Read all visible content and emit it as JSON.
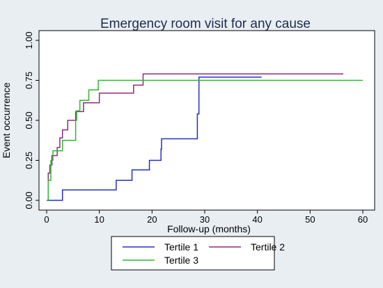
{
  "chart_data": {
    "type": "line",
    "title": "Emergency room visit for any cause",
    "xlabel": "Follow-up (months)",
    "ylabel": "Event occurrence",
    "xlim": [
      0,
      60
    ],
    "ylim": [
      0,
      1
    ],
    "xticks": [
      "0",
      "10",
      "20",
      "30",
      "40",
      "50",
      "60"
    ],
    "yticks": [
      "0.00",
      "0.25",
      "0.50",
      "0.75",
      "1.00"
    ],
    "step": true,
    "grid": false,
    "legend_position": "bottom",
    "series": [
      {
        "name": "Tertile 1",
        "color": "#2430c8",
        "x": [
          0,
          3,
          13.2,
          16.2,
          19.5,
          21.7,
          21.8,
          28.6,
          28.9,
          40.8
        ],
        "y": [
          0,
          0.065,
          0.125,
          0.19,
          0.25,
          0.32,
          0.385,
          0.54,
          0.77,
          0.77
        ]
      },
      {
        "name": "Tertile 2",
        "color": "#922c7a",
        "x": [
          0,
          0.3,
          0.6,
          1.0,
          2.0,
          2.5,
          3.0,
          4.0,
          5.5,
          7.0,
          8.5,
          10.0,
          11.0,
          16.5,
          18.3,
          56.3
        ],
        "y": [
          0,
          0.17,
          0.22,
          0.28,
          0.33,
          0.39,
          0.44,
          0.5,
          0.555,
          0.61,
          0.61,
          0.67,
          0.67,
          0.72,
          0.79,
          0.79
        ]
      },
      {
        "name": "Tertile 3",
        "color": "#2eb82e",
        "x": [
          0,
          0.3,
          0.8,
          1.2,
          3.0,
          5.5,
          5.7,
          6.3,
          8.0,
          9.8,
          60
        ],
        "y": [
          0,
          0.125,
          0.25,
          0.31,
          0.375,
          0.5,
          0.56,
          0.625,
          0.69,
          0.75,
          0.75
        ]
      }
    ]
  }
}
